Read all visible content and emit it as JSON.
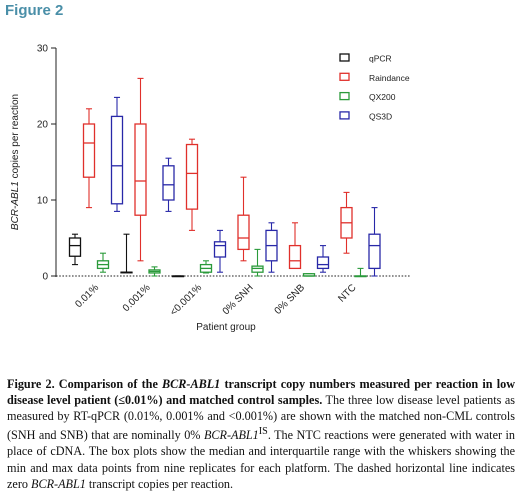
{
  "figure_heading": "Figure 2",
  "chart_data": {
    "type": "box",
    "ylabel_parts": [
      {
        "text": "BCR-ABL1",
        "italic": true
      },
      {
        "text": " copies per reaction",
        "italic": false
      }
    ],
    "xlabel": "Patient group",
    "ylim": [
      0,
      30
    ],
    "yticks": [
      0,
      10,
      20,
      30
    ],
    "categories": [
      "0.01%",
      "0.001%",
      "<0.001%",
      "0% SNH",
      "0% SNB",
      "NTC"
    ],
    "reference_line": {
      "y": 0,
      "style": "dashed"
    },
    "legend_position": "top-right",
    "series": [
      {
        "name": "qPCR",
        "color": "#111111",
        "boxes": [
          {
            "min": 1.5,
            "q1": 2.6,
            "median": 4.0,
            "q3": 5.0,
            "max": 5.5
          },
          {
            "min": 0.5,
            "q1": 0.5,
            "median": 0.5,
            "q3": 0.5,
            "max": 5.5
          },
          {
            "min": 0.0,
            "q1": 0.0,
            "median": 0.0,
            "q3": 0.0,
            "max": 0.0
          },
          null,
          null,
          null
        ]
      },
      {
        "name": "Raindance",
        "color": "#e0302b",
        "boxes": [
          {
            "min": 9.0,
            "q1": 13.0,
            "median": 17.5,
            "q3": 20.0,
            "max": 22.0
          },
          {
            "min": 2.0,
            "q1": 8.0,
            "median": 12.5,
            "q3": 20.0,
            "max": 26.0
          },
          {
            "min": 6.0,
            "q1": 8.8,
            "median": 13.5,
            "q3": 17.3,
            "max": 18.0
          },
          {
            "min": 2.0,
            "q1": 3.5,
            "median": 5.0,
            "q3": 8.0,
            "max": 13.0
          },
          {
            "min": 1.0,
            "q1": 1.0,
            "median": 2.0,
            "q3": 4.0,
            "max": 7.0
          },
          {
            "min": 3.0,
            "q1": 5.0,
            "median": 7.0,
            "q3": 9.0,
            "max": 11.0
          }
        ]
      },
      {
        "name": "QX200",
        "color": "#2a9a3a",
        "boxes": [
          {
            "min": 0.5,
            "q1": 1.0,
            "median": 1.5,
            "q3": 2.0,
            "max": 3.0
          },
          {
            "min": 0.0,
            "q1": 0.4,
            "median": 0.6,
            "q3": 0.8,
            "max": 1.2
          },
          {
            "min": 0.4,
            "q1": 0.5,
            "median": 1.0,
            "q3": 1.5,
            "max": 2.0
          },
          {
            "min": 0.0,
            "q1": 0.5,
            "median": 1.0,
            "q3": 1.3,
            "max": 3.5
          },
          {
            "min": 0.0,
            "q1": 0.0,
            "median": 0.0,
            "q3": 0.3,
            "max": 0.3
          },
          {
            "min": 0.0,
            "q1": 0.0,
            "median": 0.0,
            "q3": 0.0,
            "max": 1.0
          }
        ]
      },
      {
        "name": "QS3D",
        "color": "#2828a8",
        "boxes": [
          {
            "min": 8.5,
            "q1": 9.5,
            "median": 14.5,
            "q3": 21.0,
            "max": 23.5
          },
          {
            "min": 8.5,
            "q1": 10.0,
            "median": 12.0,
            "q3": 14.5,
            "max": 15.5
          },
          {
            "min": 0.5,
            "q1": 2.5,
            "median": 4.0,
            "q3": 4.5,
            "max": 6.0
          },
          {
            "min": 0.5,
            "q1": 2.0,
            "median": 4.0,
            "q3": 6.0,
            "max": 7.0
          },
          {
            "min": 0.5,
            "q1": 1.0,
            "median": 1.5,
            "q3": 2.5,
            "max": 4.0
          },
          {
            "min": 0.0,
            "q1": 1.0,
            "median": 4.0,
            "q3": 5.5,
            "max": 9.0
          }
        ]
      }
    ]
  },
  "caption": {
    "label": "Figure 2. Comparison of the ",
    "label_gene": "BCR-ABL1",
    "label_rest": " transcript copy numbers measured per reaction in low disease level patient (≤0.01%) and matched control samples.",
    "text_1": " The three low disease level patients as measured by RT-qPCR (0.01%, 0.001% and <0.001%) are shown with the matched non-CML controls (SNH and SNB) that are nominally 0% ",
    "text_gene_1": "BCR-ABL1",
    "text_sup": "IS",
    "text_2": ". The NTC reactions were generated with water in place of cDNA. The box plots show the median and interquartile range with the whiskers showing the min and max data points from nine replicates for each platform. The dashed horizontal line indicates zero ",
    "text_gene_2": "BCR-ABL1",
    "text_3": " transcript copies per reaction."
  }
}
